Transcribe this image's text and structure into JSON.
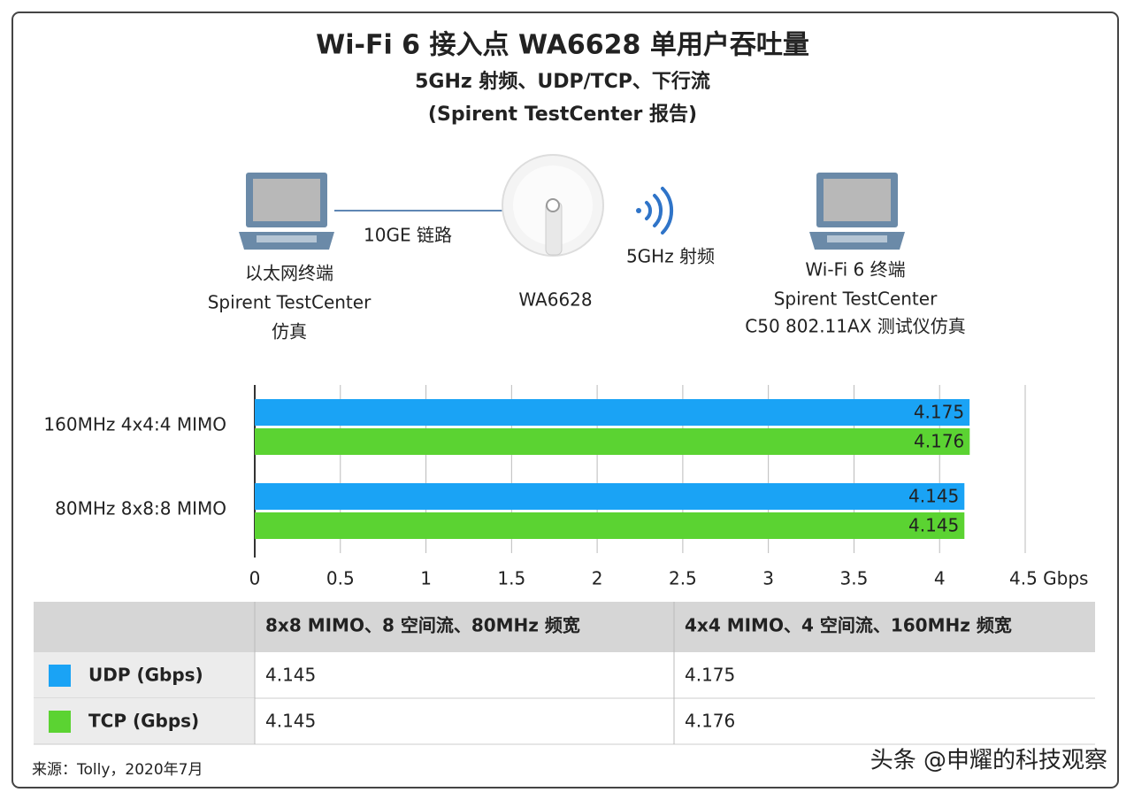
{
  "header": {
    "title": "Wi-Fi 6 接入点 WA6628 单用户吞吐量",
    "subtitle": "5GHz 射频、UDP/TCP、下行流",
    "note": "(Spirent TestCenter 报告)"
  },
  "diagram": {
    "left": [
      "以太网终端",
      "Spirent TestCenter",
      "仿真"
    ],
    "link": "10GE 链路",
    "ap": "WA6628",
    "radio": "5GHz 射频",
    "right": [
      "Wi-Fi 6 终端",
      "Spirent TestCenter",
      "C50 802.11AX 测试仪仿真"
    ]
  },
  "chart_data": {
    "type": "bar",
    "orientation": "horizontal",
    "categories": [
      "160MHz 4x4:4 MIMO",
      "80MHz 8x8:8 MIMO"
    ],
    "series": [
      {
        "name": "UDP (Gbps)",
        "color": "#1aa3f5",
        "values": [
          4.175,
          4.145
        ]
      },
      {
        "name": "TCP (Gbps)",
        "color": "#5bd332",
        "values": [
          4.176,
          4.145
        ]
      }
    ],
    "xlim": [
      0,
      4.5
    ],
    "xticks": [
      0,
      0.5,
      1,
      1.5,
      2,
      2.5,
      3,
      3.5,
      4,
      {
        "value": 4.5,
        "label": "4.5 Gbps"
      }
    ],
    "grid": true
  },
  "table": {
    "columns": [
      "8x8 MIMO、8 空间流、80MHz 频宽",
      "4x4 MIMO、4 空间流、160MHz 频宽"
    ]
  },
  "footer": {
    "source": "来源：Tolly，2020年7月",
    "watermark": "头条 @申耀的科技观察"
  }
}
